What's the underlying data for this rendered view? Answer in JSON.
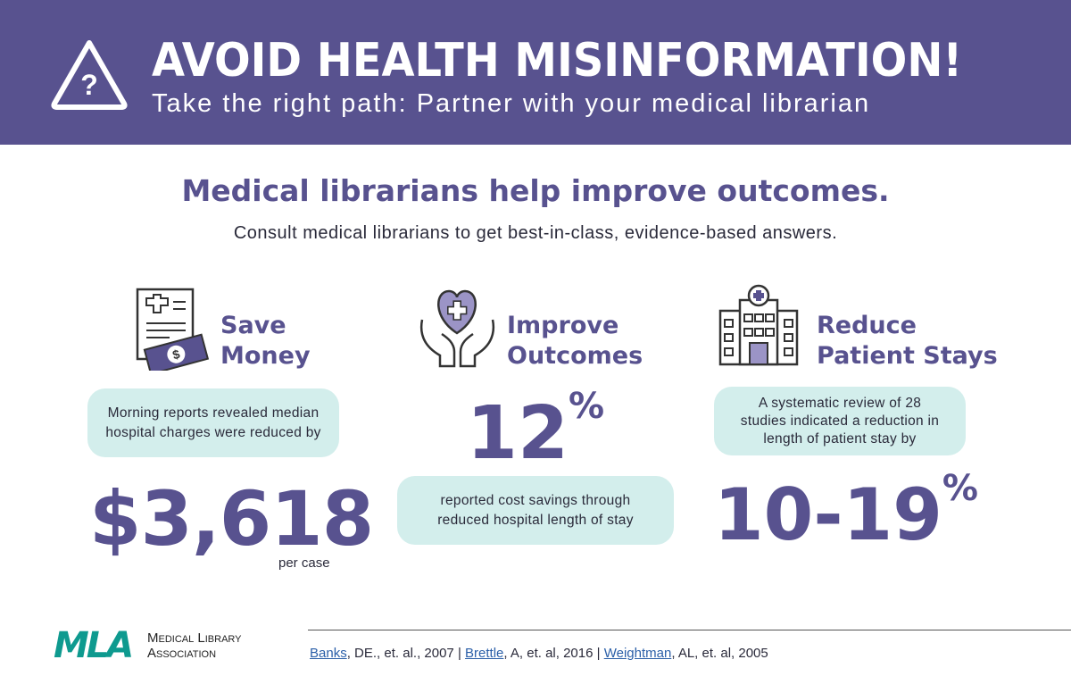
{
  "header": {
    "title": "AVOID HEALTH MISINFORMATION!",
    "subtitle": "Take the right path: Partner with your medical librarian"
  },
  "intro": {
    "heading": "Medical librarians help improve outcomes.",
    "text": "Consult medical librarians to get best-in-class, evidence-based answers."
  },
  "columns": [
    {
      "title_lines": [
        "Save",
        "Money"
      ],
      "box_lines": [
        "Morning reports revealed median",
        "hospital charges were reduced by"
      ],
      "stat": "$3,618",
      "note": "per case"
    },
    {
      "title_lines": [
        "Improve",
        "Outcomes"
      ],
      "stat": "12",
      "stat_unit": "%",
      "box_lines": [
        "reported cost savings through",
        "reduced hospital length of stay"
      ]
    },
    {
      "title_lines": [
        "Reduce",
        "Patient Stays"
      ],
      "box_lines": [
        "A systematic review of 28",
        "studies indicated a reduction in",
        "length of patient stay by"
      ],
      "stat": "10-19",
      "stat_unit": "%"
    }
  ],
  "footer": {
    "logo": {
      "mark": "MLA",
      "name_lines": [
        "Medical Library",
        "Association"
      ]
    },
    "separator": "|",
    "citations": [
      {
        "link": "Banks",
        "text": ", DE., et. al., 2007"
      },
      {
        "link": "Brettle",
        "text": ", A, et. al, 2016"
      },
      {
        "link": "Weightman",
        "text": ", AL, et. al, 2005"
      }
    ]
  }
}
